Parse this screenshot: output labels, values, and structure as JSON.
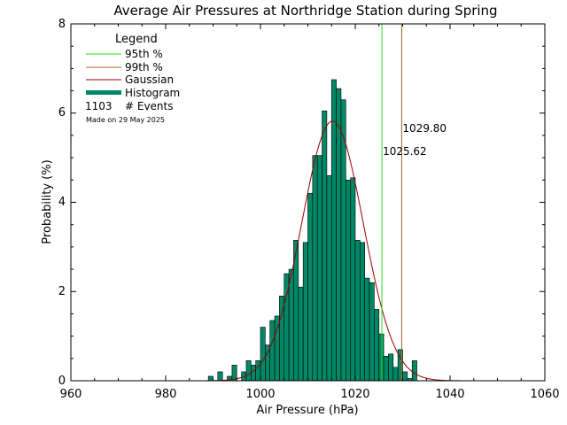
{
  "chart_data": {
    "type": "bar",
    "title": "Average Air Pressures at Northridge Station during Spring",
    "xlabel": "Air Pressure (hPa)",
    "ylabel": "Probability (%)",
    "xlim": [
      960,
      1060
    ],
    "ylim": [
      0,
      8
    ],
    "xticks": [
      "960",
      "980",
      "1000",
      "1020",
      "1040",
      "1060"
    ],
    "yticks": [
      "0",
      "2",
      "4",
      "6",
      "8"
    ],
    "bin_width": 1,
    "histogram": {
      "bin_start": [
        989,
        990,
        991,
        992,
        993,
        994,
        995,
        996,
        997,
        998,
        999,
        1000,
        1001,
        1002,
        1003,
        1004,
        1005,
        1006,
        1007,
        1008,
        1009,
        1010,
        1011,
        1012,
        1013,
        1014,
        1015,
        1016,
        1017,
        1018,
        1019,
        1020,
        1021,
        1022,
        1023,
        1024,
        1025,
        1026,
        1027,
        1028,
        1029,
        1030,
        1031,
        1032
      ],
      "values": [
        0.1,
        0.0,
        0.2,
        0.0,
        0.1,
        0.35,
        0.0,
        0.2,
        0.45,
        0.35,
        0.45,
        1.2,
        0.8,
        1.35,
        1.45,
        1.9,
        2.4,
        2.5,
        3.15,
        2.1,
        3.1,
        4.2,
        5.05,
        5.05,
        6.05,
        4.6,
        6.75,
        6.55,
        6.3,
        4.5,
        4.55,
        3.15,
        3.1,
        2.3,
        2.2,
        1.6,
        1.05,
        0.55,
        0.6,
        0.3,
        0.7,
        0.2,
        0.05,
        0.45
      ]
    },
    "gaussian": {
      "mean": 1015.2,
      "sigma": 6.5,
      "peak": 5.82
    },
    "percentiles": [
      {
        "name": "95th %",
        "value": 1025.62,
        "label": "1025.62",
        "color": "#22dd22"
      },
      {
        "name": "99th %",
        "value": 1029.8,
        "label": "1029.80",
        "color": "#aa6622"
      }
    ],
    "colors": {
      "histogram": "#008866",
      "gaussian": "#990000",
      "p95": "#22dd22",
      "p99": "#aa6622"
    },
    "legend": {
      "title": "Legend",
      "position": "top-left",
      "entries": [
        "95th %",
        "99th %",
        "Gaussian",
        "Histogram"
      ],
      "events_count": "1103",
      "events_label": "# Events",
      "stamp": "Made on 29 May 2025"
    }
  }
}
